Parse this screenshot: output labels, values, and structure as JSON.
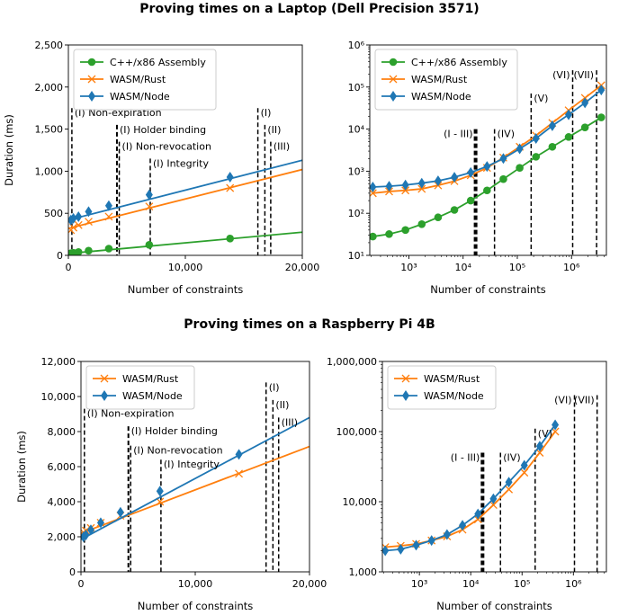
{
  "titles": {
    "laptop": "Proving times on a Laptop (Dell Precision 3571)",
    "pi": "Proving times on a Raspberry Pi 4B"
  },
  "colors": {
    "cpp": "#2ca02c",
    "rust": "#ff7f0e",
    "node": "#1f77b4"
  },
  "chart_data": [
    {
      "id": "laptop-linear",
      "type": "line",
      "xscale": "linear",
      "yscale": "linear",
      "xlim": [
        0,
        20000
      ],
      "ylim": [
        0,
        2500
      ],
      "xticks": [
        0,
        10000,
        20000
      ],
      "xtick_labels": [
        "0",
        "10,000",
        "20,000"
      ],
      "yticks": [
        0,
        500,
        1000,
        1500,
        2000,
        2500
      ],
      "ytick_labels": [
        "0",
        "500",
        "1,000",
        "1,500",
        "2,000",
        "2,500"
      ],
      "xlabel": "Number of constraints",
      "ylabel": "Duration (ms)",
      "legend": "top-left",
      "series": [
        {
          "name": "C++/x86 Assembly",
          "color": "cpp",
          "marker": "circle",
          "x": [
            216,
            432,
            864,
            1728,
            3456,
            6912,
            13824
          ],
          "y": [
            25,
            30,
            40,
            55,
            80,
            125,
            200
          ],
          "fit": {
            "x": [
              0,
              20000
            ],
            "y": [
              22,
              275
            ]
          }
        },
        {
          "name": "WASM/Rust",
          "color": "rust",
          "marker": "x",
          "x": [
            216,
            432,
            864,
            1728,
            3456,
            6912,
            13824
          ],
          "y": [
            300,
            330,
            360,
            400,
            460,
            580,
            800
          ],
          "fit": {
            "x": [
              0,
              20000
            ],
            "y": [
              320,
              1020
            ]
          }
        },
        {
          "name": "WASM/Node",
          "color": "node",
          "marker": "diamond",
          "x": [
            216,
            432,
            864,
            1728,
            3456,
            6912,
            13824
          ],
          "y": [
            420,
            440,
            460,
            520,
            590,
            720,
            930
          ],
          "fit": {
            "x": [
              0,
              20000
            ],
            "y": [
              420,
              1130
            ]
          }
        }
      ],
      "markers": [
        {
          "x": 300,
          "label": "(I) Non-expiration",
          "top": 1750
        },
        {
          "x": 4150,
          "label": "(I) Holder binding",
          "top": 1550,
          "width": 2
        },
        {
          "x": 4350,
          "label": "(I) Non-revocation",
          "top": 1350
        },
        {
          "x": 7000,
          "label": "(I) Integrity",
          "top": 1150
        },
        {
          "x": 16200,
          "label": "(I)",
          "top": 1750
        },
        {
          "x": 16800,
          "label": "(II)",
          "top": 1550
        },
        {
          "x": 17300,
          "label": "(III)",
          "top": 1350
        }
      ]
    },
    {
      "id": "laptop-log",
      "type": "line",
      "xscale": "log",
      "yscale": "log",
      "xlim": [
        190,
        4400000
      ],
      "ylim": [
        10,
        1000000
      ],
      "xticks": [
        1000,
        10000,
        100000,
        1000000
      ],
      "xtick_labels": [
        "10³",
        "10⁴",
        "10⁵",
        "10⁶"
      ],
      "yticks": [
        10,
        100,
        1000,
        10000,
        100000,
        1000000
      ],
      "ytick_labels": [
        "10¹",
        "10²",
        "10³",
        "10⁴",
        "10⁵",
        "10⁶"
      ],
      "xlabel": "Number of constraints",
      "ylabel": "",
      "legend": "top-left",
      "series": [
        {
          "name": "C++/x86 Assembly",
          "color": "cpp",
          "marker": "circle",
          "x": [
            216,
            432,
            864,
            1728,
            3456,
            6912,
            13824,
            27648,
            55296,
            110592,
            221184,
            442368,
            884736,
            1769472,
            3538944
          ],
          "y": [
            28,
            32,
            40,
            55,
            80,
            120,
            200,
            350,
            650,
            1200,
            2200,
            3800,
            6500,
            11000,
            19000
          ]
        },
        {
          "name": "WASM/Rust",
          "color": "rust",
          "marker": "x",
          "x": [
            216,
            432,
            864,
            1728,
            3456,
            6912,
            13824,
            27648,
            55296,
            110592,
            221184,
            442368,
            884736,
            1769472,
            3538944
          ],
          "y": [
            300,
            330,
            350,
            380,
            460,
            580,
            800,
            1200,
            2100,
            3800,
            7000,
            14000,
            28000,
            55000,
            110000
          ]
        },
        {
          "name": "WASM/Node",
          "color": "node",
          "marker": "diamond",
          "x": [
            216,
            432,
            864,
            1728,
            3456,
            6912,
            13824,
            27648,
            55296,
            110592,
            221184,
            442368,
            884736,
            1769472,
            3538944
          ],
          "y": [
            420,
            440,
            470,
            520,
            590,
            720,
            930,
            1300,
            2000,
            3400,
            6000,
            12000,
            22000,
            42000,
            85000
          ]
        }
      ],
      "markers": [
        {
          "x": 17000,
          "label": "(I - III)",
          "top": 10000,
          "width": 4,
          "anchor": "end"
        },
        {
          "x": 38000,
          "label": "(IV)",
          "top": 10000
        },
        {
          "x": 180000,
          "label": "(V)",
          "top": 70000
        },
        {
          "x": 1050000,
          "label": "(VI)",
          "top": 250000,
          "anchor": "end"
        },
        {
          "x": 2900000,
          "label": "(VII)",
          "top": 250000,
          "anchor": "end"
        }
      ]
    },
    {
      "id": "pi-linear",
      "type": "line",
      "xscale": "linear",
      "yscale": "linear",
      "xlim": [
        0,
        20000
      ],
      "ylim": [
        0,
        12000
      ],
      "xticks": [
        0,
        10000,
        20000
      ],
      "xtick_labels": [
        "0",
        "10,000",
        "20,000"
      ],
      "yticks": [
        0,
        2000,
        4000,
        6000,
        8000,
        10000,
        12000
      ],
      "ytick_labels": [
        "0",
        "2,000",
        "4,000",
        "6,000",
        "8,000",
        "10,000",
        "12,000"
      ],
      "xlabel": "Number of constraints",
      "ylabel": "Duration (ms)",
      "legend": "top-left",
      "series": [
        {
          "name": "WASM/Rust",
          "color": "rust",
          "marker": "x",
          "x": [
            216,
            432,
            864,
            1728,
            3456,
            6912,
            13824
          ],
          "y": [
            2250,
            2350,
            2500,
            2800,
            3200,
            4000,
            5600
          ],
          "fit": {
            "x": [
              0,
              20000
            ],
            "y": [
              2200,
              7150
            ]
          }
        },
        {
          "name": "WASM/Node",
          "color": "node",
          "marker": "diamond",
          "x": [
            216,
            432,
            864,
            1728,
            3456,
            6912,
            13824
          ],
          "y": [
            2000,
            2100,
            2400,
            2800,
            3400,
            4600,
            6700
          ],
          "fit": {
            "x": [
              0,
              20000
            ],
            "y": [
              1850,
              8800
            ]
          }
        }
      ],
      "markers": [
        {
          "x": 300,
          "label": "(I) Non-expiration",
          "top": 9300
        },
        {
          "x": 4150,
          "label": "(I) Holder binding",
          "top": 8300,
          "width": 2
        },
        {
          "x": 4350,
          "label": "(I) Non-revocation",
          "top": 7200
        },
        {
          "x": 7000,
          "label": "(I) Integrity",
          "top": 6400
        },
        {
          "x": 16200,
          "label": "(I)",
          "top": 10800
        },
        {
          "x": 16800,
          "label": "(II)",
          "top": 9800
        },
        {
          "x": 17300,
          "label": "(III)",
          "top": 8800
        }
      ]
    },
    {
      "id": "pi-log",
      "type": "line",
      "xscale": "log",
      "yscale": "log",
      "xlim": [
        190,
        4400000
      ],
      "ylim": [
        1000,
        1000000
      ],
      "xticks": [
        1000,
        10000,
        100000,
        1000000
      ],
      "xtick_labels": [
        "10³",
        "10⁴",
        "10⁵",
        "10⁶"
      ],
      "yticks": [
        1000,
        10000,
        100000,
        1000000
      ],
      "ytick_labels": [
        "1,000",
        "10,000",
        "100,000",
        "1,000,000"
      ],
      "xlabel": "Number of constraints",
      "ylabel": "",
      "legend": "top-left",
      "series": [
        {
          "name": "WASM/Rust",
          "color": "rust",
          "marker": "x",
          "x": [
            216,
            432,
            864,
            1728,
            3456,
            6912,
            13824,
            27648,
            55296,
            110592,
            221184,
            442368
          ],
          "y": [
            2250,
            2350,
            2500,
            2800,
            3200,
            4000,
            5600,
            9000,
            15000,
            26000,
            50000,
            100000
          ]
        },
        {
          "name": "WASM/Node",
          "color": "node",
          "marker": "diamond",
          "x": [
            216,
            432,
            864,
            1728,
            3456,
            6912,
            13824,
            27648,
            55296,
            110592,
            221184,
            442368
          ],
          "y": [
            2000,
            2100,
            2400,
            2800,
            3400,
            4600,
            6700,
            11000,
            19000,
            33000,
            62000,
            125000
          ]
        }
      ],
      "markers": [
        {
          "x": 17000,
          "label": "(I - III)",
          "top": 50000,
          "width": 4,
          "anchor": "end"
        },
        {
          "x": 38000,
          "label": "(IV)",
          "top": 50000
        },
        {
          "x": 180000,
          "label": "(V)",
          "top": 110000
        },
        {
          "x": 1050000,
          "label": "(VI)",
          "top": 330000,
          "anchor": "end"
        },
        {
          "x": 2900000,
          "label": "(VII)",
          "top": 330000,
          "anchor": "end"
        }
      ]
    }
  ]
}
